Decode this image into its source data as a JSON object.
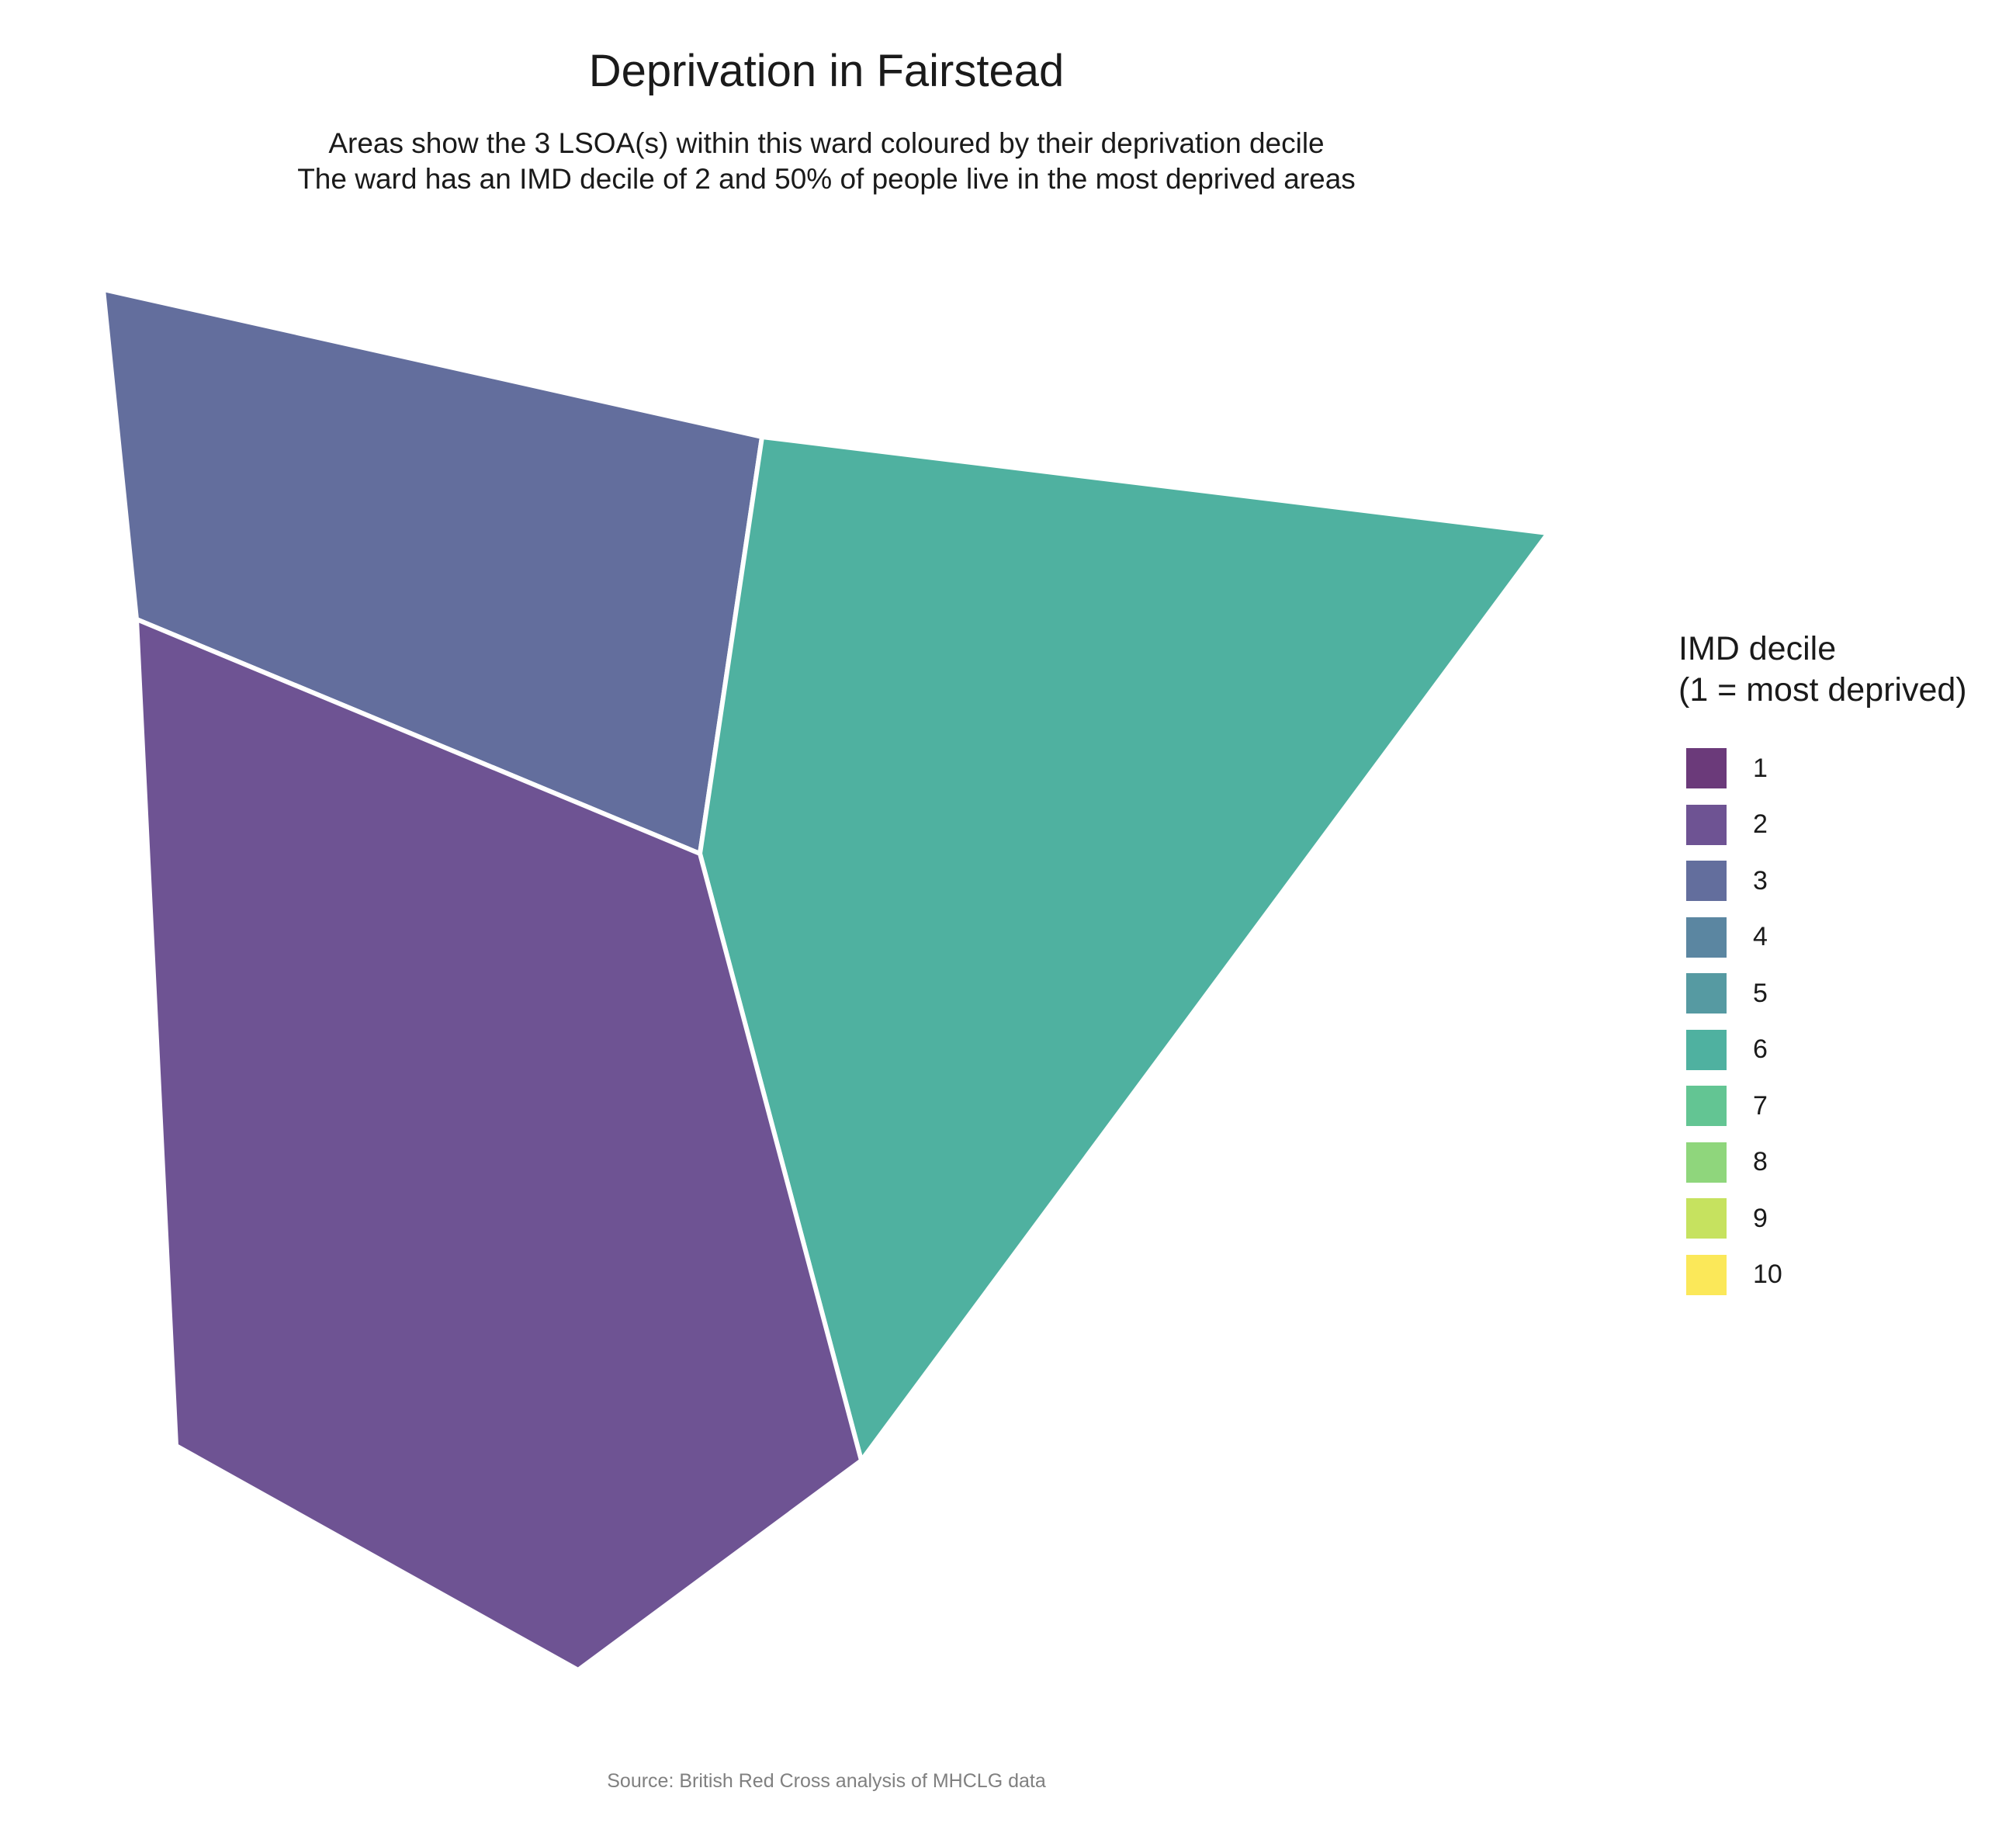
{
  "title": "Deprivation in Fairstead",
  "subtitle": [
    "Areas show the 3 LSOA(s) within this ward coloured by their deprivation decile",
    "The ward has an IMD decile of 2 and 50% of people live in the most deprived areas"
  ],
  "caption": "Source: British Red Cross analysis of MHCLG data",
  "legend": {
    "title": "IMD decile\n(1 = most deprived)",
    "items": [
      {
        "label": "1",
        "color": "#6b3a7a"
      },
      {
        "label": "2",
        "color": "#6e5393"
      },
      {
        "label": "3",
        "color": "#636e9d"
      },
      {
        "label": "4",
        "color": "#5b86a1"
      },
      {
        "label": "5",
        "color": "#569aa2"
      },
      {
        "label": "6",
        "color": "#4fb1a0"
      },
      {
        "label": "7",
        "color": "#63c593"
      },
      {
        "label": "8",
        "color": "#8fd67c"
      },
      {
        "label": "9",
        "color": "#c6e25f"
      },
      {
        "label": "10",
        "color": "#fbe859"
      }
    ]
  },
  "chart_data": {
    "type": "choropleth",
    "regions": [
      {
        "decile": 3,
        "color": "#636e9d"
      },
      {
        "decile": 6,
        "color": "#4fb1a0"
      },
      {
        "decile": 2,
        "color": "#6e5393"
      }
    ]
  }
}
